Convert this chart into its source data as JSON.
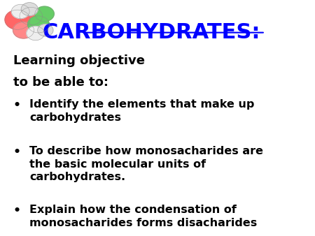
{
  "title": "CARBOHYDRATES:",
  "title_color": "#0000FF",
  "background_color": "#FFFFFF",
  "text_color": "#000000",
  "heading1": "Learning objective",
  "heading2": "to be able to:",
  "bullet_points": [
    "Identify the elements that make up\ncarbohydrates",
    "To describe how monosacharides are\nthe basic molecular units of\ncarbohydrates.",
    "Explain how the condensation of\nmonosacharides forms disacharides"
  ],
  "font_size_title": 22,
  "font_size_heading": 13,
  "font_size_body": 11.5,
  "figsize": [
    4.5,
    3.38
  ],
  "dpi": 100
}
